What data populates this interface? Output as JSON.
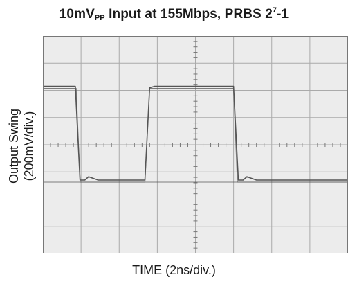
{
  "chart_data": {
    "type": "line",
    "title": {
      "text": "10mV",
      "sub": "PP",
      "mid": " Input at 155Mbps, PRBS 2",
      "sup": "7",
      "end": "-1"
    },
    "xlabel": "TIME (2ns/div.)",
    "ylabel": [
      "Output Swing",
      "(200mV/div.)"
    ],
    "x_divisions": 8,
    "y_divisions": 8,
    "grid": true,
    "center_crosshair_ticks": true,
    "xlim": [
      0,
      16
    ],
    "ylim": [
      -800,
      800
    ],
    "x_unit": "ns",
    "y_unit": "mV",
    "series": [
      {
        "values": [
          [
            0.0,
            430
          ],
          [
            1.7,
            430
          ],
          [
            1.95,
            -260
          ],
          [
            2.2,
            -260
          ],
          [
            2.4,
            -235
          ],
          [
            2.9,
            -260
          ],
          [
            5.35,
            -260
          ],
          [
            5.6,
            420
          ],
          [
            5.85,
            430
          ],
          [
            6.3,
            430
          ],
          [
            10.0,
            430
          ],
          [
            10.25,
            -260
          ],
          [
            10.5,
            -260
          ],
          [
            10.7,
            -235
          ],
          [
            11.2,
            -260
          ],
          [
            16.0,
            -260
          ]
        ]
      },
      {
        "values": [
          [
            0.0,
            415
          ],
          [
            1.75,
            415
          ],
          [
            1.95,
            -275
          ],
          [
            16.0,
            -275
          ]
        ]
      },
      {
        "values": [
          [
            0.0,
            -275
          ],
          [
            5.35,
            -275
          ],
          [
            5.6,
            415
          ],
          [
            10.0,
            415
          ],
          [
            10.2,
            -275
          ],
          [
            16.0,
            -275
          ]
        ]
      }
    ],
    "colors": {
      "trace": "#555555",
      "grid": "#aaaaaa",
      "frame": "#777777",
      "background": "#ececec"
    }
  }
}
